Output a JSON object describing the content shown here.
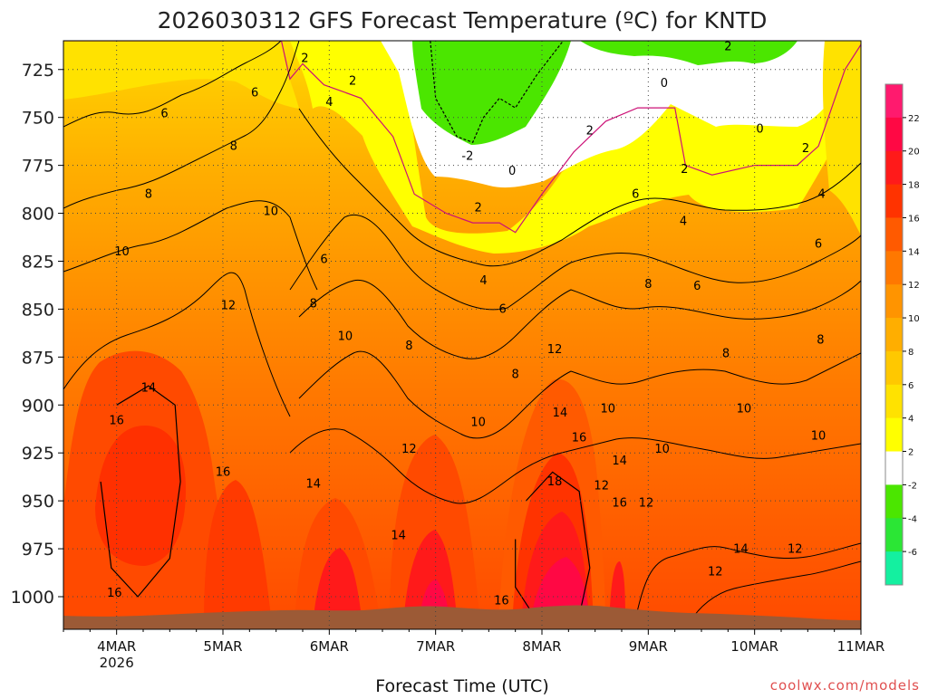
{
  "chart_data": {
    "type": "heatmap",
    "title": "2026030312 GFS Forecast Temperature (ºC) for KNTD",
    "xlabel": "Forecast Time (UTC)",
    "ylabel": "",
    "credit": "coolwx.com/models",
    "x_range_days": [
      3.5,
      11.0
    ],
    "x_ticks": [
      {
        "day": 4,
        "label": "4MAR",
        "sublabel": "2026"
      },
      {
        "day": 5,
        "label": "5MAR"
      },
      {
        "day": 6,
        "label": "6MAR"
      },
      {
        "day": 7,
        "label": "7MAR"
      },
      {
        "day": 8,
        "label": "8MAR"
      },
      {
        "day": 9,
        "label": "9MAR"
      },
      {
        "day": 10,
        "label": "10MAR"
      },
      {
        "day": 11,
        "label": "11MAR"
      }
    ],
    "y_range_hpa": [
      1017,
      710
    ],
    "y_ticks": [
      725,
      750,
      775,
      800,
      825,
      850,
      875,
      900,
      925,
      950,
      975,
      1000
    ],
    "legend": {
      "placement": "right",
      "levels": [
        24,
        22,
        20,
        18,
        16,
        14,
        12,
        10,
        8,
        6,
        4,
        2,
        -2,
        -4,
        -6,
        -8
      ],
      "labels": [
        "22",
        "20",
        "18",
        "16",
        "14",
        "12",
        "10",
        "8",
        "6",
        "4",
        "2",
        "-2",
        "-4",
        "-6"
      ],
      "colors": [
        "#ff1a6e",
        "#ff0844",
        "#ff1a1a",
        "#ff3300",
        "#ff5a00",
        "#ff7800",
        "#ff9400",
        "#ffae00",
        "#ffc800",
        "#ffe200",
        "#ffff00",
        "#ffffff",
        "#4be600",
        "#2be635",
        "#14f0a0"
      ]
    },
    "series": [
      {
        "name": "2C isotherm",
        "value": 2,
        "points": [
          [
            3.5,
            710
          ],
          [
            5.55,
            710
          ],
          [
            5.63,
            730
          ],
          [
            5.75,
            722
          ],
          [
            5.95,
            733
          ],
          [
            6.3,
            740
          ],
          [
            6.6,
            760
          ],
          [
            6.8,
            790
          ],
          [
            7.1,
            800
          ],
          [
            7.35,
            805
          ],
          [
            7.6,
            805
          ],
          [
            7.75,
            810
          ],
          [
            8.0,
            790
          ],
          [
            8.3,
            768
          ],
          [
            8.6,
            752
          ],
          [
            8.9,
            745
          ],
          [
            9.25,
            745
          ],
          [
            9.35,
            775
          ],
          [
            9.6,
            780
          ],
          [
            10.0,
            775
          ],
          [
            10.4,
            775
          ],
          [
            10.6,
            765
          ],
          [
            10.85,
            725
          ],
          [
            11.0,
            712
          ]
        ]
      },
      {
        "name": "-2C isotherm",
        "value": -2,
        "points": [
          [
            6.95,
            710
          ],
          [
            7.0,
            740
          ],
          [
            7.2,
            760
          ],
          [
            7.35,
            763
          ],
          [
            7.45,
            750
          ],
          [
            7.6,
            740
          ],
          [
            7.75,
            745
          ],
          [
            7.95,
            728
          ],
          [
            8.2,
            710
          ]
        ]
      },
      {
        "name": "16C region",
        "value": 16,
        "points": [
          [
            4.0,
            900
          ],
          [
            4.3,
            890
          ],
          [
            4.55,
            900
          ],
          [
            4.6,
            940
          ],
          [
            4.5,
            980
          ],
          [
            4.2,
            1000
          ],
          [
            3.95,
            985
          ],
          [
            3.85,
            940
          ]
        ]
      },
      {
        "name": "18C region",
        "value": 18,
        "points": [
          [
            7.85,
            950
          ],
          [
            8.1,
            935
          ],
          [
            8.35,
            945
          ],
          [
            8.45,
            985
          ],
          [
            8.35,
            1010
          ],
          [
            7.95,
            1012
          ],
          [
            7.75,
            995
          ],
          [
            7.75,
            970
          ]
        ]
      }
    ],
    "contour_labels": [
      {
        "text": "6",
        "day": 4.45,
        "hpa": 750
      },
      {
        "text": "6",
        "day": 5.3,
        "hpa": 739
      },
      {
        "text": "8",
        "day": 5.1,
        "hpa": 767
      },
      {
        "text": "8",
        "day": 4.3,
        "hpa": 792
      },
      {
        "text": "10",
        "day": 4.05,
        "hpa": 822
      },
      {
        "text": "10",
        "day": 5.45,
        "hpa": 801
      },
      {
        "text": "12",
        "day": 5.05,
        "hpa": 850
      },
      {
        "text": "14",
        "day": 4.3,
        "hpa": 893
      },
      {
        "text": "16",
        "day": 4.0,
        "hpa": 910
      },
      {
        "text": "16",
        "day": 5.0,
        "hpa": 937
      },
      {
        "text": "16",
        "day": 3.98,
        "hpa": 1000
      },
      {
        "text": "2",
        "day": 5.77,
        "hpa": 721
      },
      {
        "text": "2",
        "day": 6.22,
        "hpa": 733
      },
      {
        "text": "4",
        "day": 6.0,
        "hpa": 744
      },
      {
        "text": "6",
        "day": 5.95,
        "hpa": 826
      },
      {
        "text": "8",
        "day": 5.85,
        "hpa": 849
      },
      {
        "text": "10",
        "day": 6.15,
        "hpa": 866
      },
      {
        "text": "14",
        "day": 5.85,
        "hpa": 943
      },
      {
        "text": "12",
        "day": 6.75,
        "hpa": 925
      },
      {
        "text": "8",
        "day": 6.75,
        "hpa": 871
      },
      {
        "text": "14",
        "day": 6.65,
        "hpa": 970
      },
      {
        "text": "-2",
        "day": 7.3,
        "hpa": 772
      },
      {
        "text": "0",
        "day": 7.72,
        "hpa": 780
      },
      {
        "text": "2",
        "day": 7.4,
        "hpa": 799
      },
      {
        "text": "4",
        "day": 7.45,
        "hpa": 837
      },
      {
        "text": "6",
        "day": 7.63,
        "hpa": 852
      },
      {
        "text": "8",
        "day": 7.75,
        "hpa": 886
      },
      {
        "text": "10",
        "day": 7.4,
        "hpa": 911
      },
      {
        "text": "12",
        "day": 8.12,
        "hpa": 873
      },
      {
        "text": "14",
        "day": 8.17,
        "hpa": 906
      },
      {
        "text": "16",
        "day": 8.35,
        "hpa": 919
      },
      {
        "text": "18",
        "day": 8.12,
        "hpa": 942
      },
      {
        "text": "16",
        "day": 7.62,
        "hpa": 1004
      },
      {
        "text": "2",
        "day": 8.45,
        "hpa": 759
      },
      {
        "text": "6",
        "day": 8.88,
        "hpa": 792
      },
      {
        "text": "8",
        "day": 9.0,
        "hpa": 839
      },
      {
        "text": "10",
        "day": 8.62,
        "hpa": 904
      },
      {
        "text": "14",
        "day": 8.73,
        "hpa": 931
      },
      {
        "text": "12",
        "day": 8.56,
        "hpa": 944
      },
      {
        "text": "16",
        "day": 8.73,
        "hpa": 953
      },
      {
        "text": "12",
        "day": 8.98,
        "hpa": 953
      },
      {
        "text": "10",
        "day": 9.13,
        "hpa": 925
      },
      {
        "text": "0",
        "day": 9.15,
        "hpa": 734
      },
      {
        "text": "2",
        "day": 9.34,
        "hpa": 779
      },
      {
        "text": "4",
        "day": 9.33,
        "hpa": 806
      },
      {
        "text": "6",
        "day": 9.46,
        "hpa": 840
      },
      {
        "text": "8",
        "day": 9.73,
        "hpa": 875
      },
      {
        "text": "10",
        "day": 9.9,
        "hpa": 904
      },
      {
        "text": "12",
        "day": 9.63,
        "hpa": 989
      },
      {
        "text": "14",
        "day": 9.87,
        "hpa": 977
      },
      {
        "text": "12",
        "day": 10.38,
        "hpa": 977
      },
      {
        "text": "10",
        "day": 10.6,
        "hpa": 918
      },
      {
        "text": "8",
        "day": 10.62,
        "hpa": 868
      },
      {
        "text": "6",
        "day": 10.6,
        "hpa": 818
      },
      {
        "text": "4",
        "day": 10.63,
        "hpa": 792
      },
      {
        "text": "2",
        "day": 10.48,
        "hpa": 768
      },
      {
        "text": "0",
        "day": 10.05,
        "hpa": 758
      },
      {
        "text": "2",
        "day": 9.75,
        "hpa": 715
      }
    ]
  }
}
